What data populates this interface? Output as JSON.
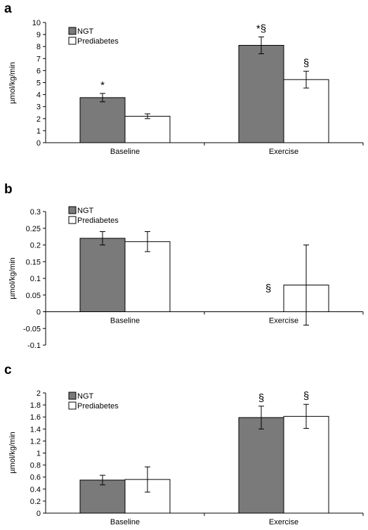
{
  "chart_data": [
    {
      "panel": "a",
      "type": "bar",
      "ylabel": "µmol/kg/min",
      "categories": [
        "Baseline",
        "Exercise"
      ],
      "ylim": [
        0,
        10
      ],
      "yticks": [
        0,
        1,
        2,
        3,
        4,
        5,
        6,
        7,
        8,
        9,
        10
      ],
      "series": [
        {
          "name": "NGT",
          "values": [
            3.75,
            8.1
          ],
          "err": [
            0.35,
            0.7
          ]
        },
        {
          "name": "Prediabetes",
          "values": [
            2.2,
            5.25
          ],
          "err": [
            0.2,
            0.7
          ]
        }
      ],
      "annotations": [
        [
          "*",
          ""
        ],
        [
          "*§",
          "§"
        ]
      ],
      "legend": "top-left",
      "colors": {
        "NGT": "#7a7a7a",
        "Prediabetes": "#ffffff"
      }
    },
    {
      "panel": "b",
      "type": "bar",
      "ylabel": "µmol/kg/min",
      "categories": [
        "Baseline",
        "Exercise"
      ],
      "ylim": [
        -0.1,
        0.3
      ],
      "yticks": [
        -0.1,
        -0.05,
        0,
        0.05,
        0.1,
        0.15,
        0.2,
        0.25,
        0.3
      ],
      "series": [
        {
          "name": "NGT",
          "values": [
            0.22,
            0.0
          ],
          "err": [
            0.02,
            0.0
          ]
        },
        {
          "name": "Prediabetes",
          "values": [
            0.21,
            0.08
          ],
          "err": [
            0.03,
            0.12
          ]
        }
      ],
      "annotations": [
        [
          "",
          ""
        ],
        [
          "§",
          ""
        ]
      ],
      "legend": "top-left",
      "colors": {
        "NGT": "#7a7a7a",
        "Prediabetes": "#ffffff"
      }
    },
    {
      "panel": "c",
      "type": "bar",
      "ylabel": "µmol/kg/min",
      "categories": [
        "Baseline",
        "Exercise"
      ],
      "ylim": [
        0,
        2
      ],
      "yticks": [
        0,
        0.2,
        0.4,
        0.6,
        0.8,
        1,
        1.2,
        1.4,
        1.6,
        1.8,
        2
      ],
      "series": [
        {
          "name": "NGT",
          "values": [
            0.55,
            1.59
          ],
          "err": [
            0.08,
            0.19
          ]
        },
        {
          "name": "Prediabetes",
          "values": [
            0.56,
            1.61
          ],
          "err": [
            0.21,
            0.2
          ]
        }
      ],
      "annotations": [
        [
          "",
          ""
        ],
        [
          "§",
          "§"
        ]
      ],
      "legend": "top-left",
      "colors": {
        "NGT": "#7a7a7a",
        "Prediabetes": "#ffffff"
      }
    }
  ]
}
